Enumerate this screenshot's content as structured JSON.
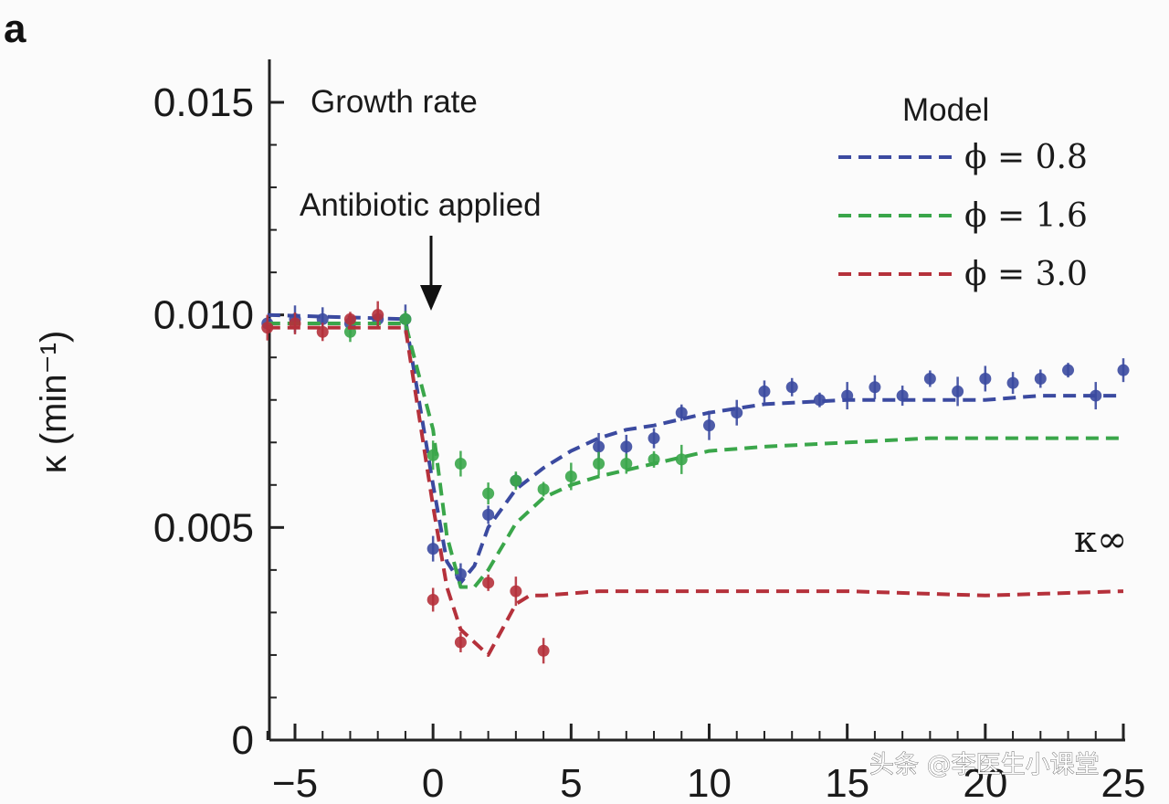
{
  "panel_label": "a",
  "watermark": "头条 @李医生小课堂",
  "chart_data": {
    "type": "line",
    "title": "Growth rate",
    "xlabel": "",
    "ylabel": "κ (min⁻¹)",
    "xlim": [
      -6,
      25
    ],
    "ylim": [
      0,
      0.016
    ],
    "x_ticks": [
      -5,
      0,
      5,
      10,
      15,
      20,
      25
    ],
    "x_tick_labels": [
      "−5",
      "0",
      "5",
      "10",
      "15",
      "20",
      "25"
    ],
    "y_ticks": [
      0,
      0.005,
      0.01,
      0.015
    ],
    "y_tick_labels": [
      "0",
      "0.005",
      "0.010",
      "0.015"
    ],
    "annotations": {
      "antibiotic": "Antibiotic applied",
      "antibiotic_x": 0,
      "kappa_inf": "κ∞"
    },
    "legend": {
      "title": "Model",
      "position": "top-right"
    },
    "series": [
      {
        "name": "ϕ = 0.8",
        "color": "#3b4aa0",
        "model": {
          "x": [
            -6,
            -1,
            0,
            0.5,
            1,
            1.5,
            2,
            3,
            4,
            5,
            6,
            7,
            8,
            10,
            12,
            15,
            18,
            20,
            22,
            25
          ],
          "y": [
            0.01,
            0.0099,
            0.006,
            0.0042,
            0.0037,
            0.0041,
            0.005,
            0.0059,
            0.0064,
            0.0068,
            0.0071,
            0.0073,
            0.0074,
            0.0077,
            0.0079,
            0.008,
            0.008,
            0.008,
            0.0081,
            0.0081
          ]
        },
        "points": {
          "x": [
            -6,
            -5,
            -4,
            -3,
            -2,
            -1,
            0,
            1,
            2,
            3,
            6,
            7,
            8,
            9,
            10,
            11,
            12,
            13,
            14,
            15,
            16,
            17,
            18,
            19,
            20,
            21,
            22,
            23,
            24,
            25
          ],
          "y": [
            0.0098,
            0.0099,
            0.0099,
            0.0098,
            0.0099,
            0.0099,
            0.0045,
            0.0039,
            0.0053,
            0.0061,
            0.0069,
            0.0069,
            0.0071,
            0.0077,
            0.0074,
            0.0077,
            0.0082,
            0.0083,
            0.008,
            0.0081,
            0.0083,
            0.0081,
            0.0085,
            0.0082,
            0.0085,
            0.0084,
            0.0085,
            0.0087,
            0.0081,
            0.0087
          ]
        }
      },
      {
        "name": "ϕ = 1.6",
        "color": "#3aa64a",
        "model": {
          "x": [
            -6,
            -1,
            0,
            0.5,
            1,
            1.5,
            2,
            3,
            4,
            5,
            6,
            8,
            10,
            12,
            15,
            18,
            20,
            25
          ],
          "y": [
            0.0098,
            0.0098,
            0.0073,
            0.0048,
            0.0036,
            0.0036,
            0.004,
            0.0051,
            0.0057,
            0.006,
            0.0062,
            0.0065,
            0.0068,
            0.0069,
            0.007,
            0.0071,
            0.0071,
            0.0071
          ]
        },
        "points": {
          "x": [
            -3,
            -1,
            0,
            1,
            2,
            3,
            4,
            5,
            6,
            7,
            8,
            9
          ],
          "y": [
            0.0096,
            0.0099,
            0.0067,
            0.0065,
            0.0058,
            0.0061,
            0.0059,
            0.0062,
            0.0065,
            0.0065,
            0.0066,
            0.0066
          ]
        }
      },
      {
        "name": "ϕ = 3.0",
        "color": "#b5313b",
        "model": {
          "x": [
            -6,
            -1,
            0,
            0.5,
            1,
            1.5,
            2,
            2.5,
            3,
            3.5,
            4,
            6,
            10,
            15,
            20,
            25
          ],
          "y": [
            0.0097,
            0.0097,
            0.0055,
            0.0036,
            0.0026,
            0.0023,
            0.002,
            0.0026,
            0.0032,
            0.0034,
            0.0034,
            0.0035,
            0.0035,
            0.0035,
            0.0034,
            0.0035
          ]
        },
        "points": {
          "x": [
            -6,
            -5,
            -4,
            -3,
            -2,
            0,
            1,
            2,
            3,
            4
          ],
          "y": [
            0.0097,
            0.0098,
            0.0096,
            0.0099,
            0.01,
            0.0033,
            0.0023,
            0.0037,
            0.0035,
            0.0021
          ]
        }
      }
    ]
  }
}
